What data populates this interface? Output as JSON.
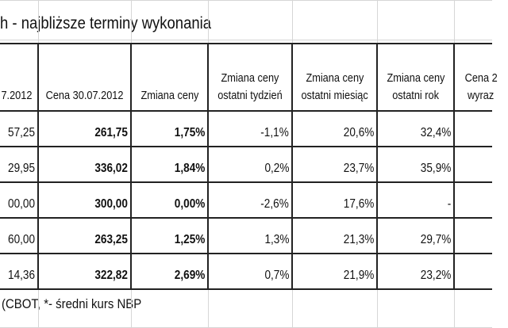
{
  "title": "h - najbliższe terminy wykonania",
  "table": {
    "header": [
      [
        "7.2012"
      ],
      [
        "Cena 30.07.2012"
      ],
      [
        "Zmiana ceny"
      ],
      [
        "Zmiana ceny",
        "ostatni tydzień"
      ],
      [
        "Zmiana ceny",
        "ostatni miesiąc"
      ],
      [
        "Zmiana ceny",
        "ostatni rok"
      ],
      [
        "Cena 2",
        "wyraz"
      ]
    ],
    "rows": [
      [
        "57,25",
        "261,75",
        "1,75%",
        "-1,1%",
        "20,6%",
        "32,4%"
      ],
      [
        "29,95",
        "336,02",
        "1,84%",
        "0,2%",
        "23,7%",
        "35,9%"
      ],
      [
        "00,00",
        "300,00",
        "0,00%",
        "-2,6%",
        "17,6%",
        "-"
      ],
      [
        "60,00",
        "263,25",
        "1,25%",
        "1,3%",
        "21,3%",
        "29,7%"
      ],
      [
        "14,36",
        "322,82",
        "2,69%",
        "0,7%",
        "21,9%",
        "23,2%"
      ]
    ]
  },
  "footnote": "(CBOT, *- średni kurs NBP"
}
